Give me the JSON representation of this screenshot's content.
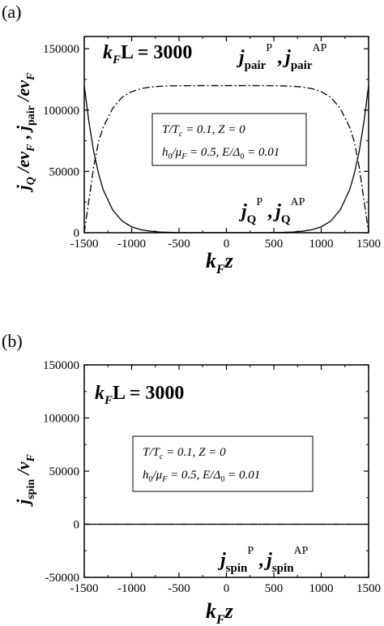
{
  "chart_data": [
    {
      "panel_label": "(a)",
      "type": "line",
      "xlabel": {
        "main": "k",
        "sub": "F",
        "tail": "z"
      },
      "ylabel_parts": [
        {
          "t": "j",
          "cls": "bi"
        },
        {
          "t": "Q",
          "cls": "bi",
          "sub": true
        },
        {
          "t": " /ev",
          "cls": "bi"
        },
        {
          "t": "F",
          "cls": "bi",
          "sub": true
        },
        {
          "t": " , ",
          "cls": "b"
        },
        {
          "t": "j",
          "cls": "bi"
        },
        {
          "t": "pair",
          "cls": "b",
          "sub": true
        },
        {
          "t": " /ev",
          "cls": "bi"
        },
        {
          "t": "F",
          "cls": "bi",
          "sub": true
        }
      ],
      "xlim": [
        -1500,
        1500
      ],
      "ylim": [
        0,
        160000
      ],
      "xticks": [
        -1500,
        -1000,
        -500,
        0,
        500,
        1000,
        1500
      ],
      "yticks": [
        0,
        50000,
        100000,
        150000
      ],
      "xtick_labels": [
        "-1500",
        "-1000",
        "-500",
        "0",
        "500",
        "1000",
        "1500"
      ],
      "ytick_labels": [
        "0",
        "50000",
        "100000",
        "150000"
      ],
      "kfl_text": {
        "k": "k",
        "sub": "F",
        "rest": "L = 3000"
      },
      "params_box": {
        "line1": [
          "T/T",
          "c",
          " = 0.1,  Z = 0"
        ],
        "line2": [
          "h",
          "0",
          "/μ",
          "F",
          " = 0.5,  E/Δ",
          "0",
          " = 0.01"
        ]
      },
      "annotations": [
        {
          "base": "j",
          "sub": "pair",
          "sup": "P",
          "mid": " ,",
          "base2": "j",
          "sub2": "pair",
          "sup2": "AP"
        },
        {
          "base": "j",
          "sub": "Q",
          "sup": "P",
          "mid": " ,",
          "base2": "j",
          "sub2": "Q",
          "sup2": "AP"
        }
      ],
      "series": [
        {
          "style": "solid",
          "x": [
            -1500,
            -1450,
            -1400,
            -1350,
            -1300,
            -1200,
            -1100,
            -1000,
            -900,
            -800,
            -700,
            -600,
            -500,
            -400,
            -300,
            -200,
            -100,
            0,
            100,
            200,
            300,
            400,
            500,
            600,
            700,
            800,
            900,
            1000,
            1100,
            1200,
            1300,
            1350,
            1400,
            1450,
            1500
          ],
          "values": [
            120000,
            90000,
            66000,
            48500,
            35000,
            18500,
            9500,
            4800,
            2400,
            1200,
            600,
            300,
            150,
            80,
            50,
            40,
            40,
            40,
            40,
            40,
            50,
            80,
            150,
            300,
            600,
            1200,
            2400,
            4800,
            9500,
            18500,
            35000,
            48500,
            66000,
            90000,
            120000
          ]
        },
        {
          "style": "dashdot",
          "x": [
            -1500,
            -1450,
            -1400,
            -1350,
            -1300,
            -1200,
            -1100,
            -1000,
            -900,
            -800,
            -700,
            -600,
            -500,
            -400,
            -300,
            -200,
            -100,
            0,
            100,
            200,
            300,
            400,
            500,
            600,
            700,
            800,
            900,
            1000,
            1100,
            1200,
            1300,
            1350,
            1400,
            1450,
            1500
          ],
          "values": [
            0,
            27000,
            54000,
            74000,
            86000,
            101500,
            110500,
            115000,
            117500,
            118800,
            119400,
            119700,
            119850,
            119920,
            119950,
            119960,
            119960,
            119960,
            119960,
            119960,
            119950,
            119920,
            119850,
            119700,
            119400,
            118800,
            117500,
            115000,
            110500,
            101500,
            86000,
            74000,
            54000,
            27000,
            0
          ]
        }
      ]
    },
    {
      "panel_label": "(b)",
      "type": "line",
      "xlabel": {
        "main": "k",
        "sub": "F",
        "tail": "z"
      },
      "ylabel_parts": [
        {
          "t": "j",
          "cls": "bi"
        },
        {
          "t": "spin",
          "cls": "b",
          "sub": true
        },
        {
          "t": " /v",
          "cls": "bi"
        },
        {
          "t": "F",
          "cls": "bi",
          "sub": true
        }
      ],
      "xlim": [
        -1500,
        1500
      ],
      "ylim": [
        -50000,
        150000
      ],
      "xticks": [
        -1500,
        -1000,
        -500,
        0,
        500,
        1000,
        1500
      ],
      "yticks": [
        -50000,
        0,
        50000,
        100000,
        150000
      ],
      "xtick_labels": [
        "-1500",
        "-1000",
        "-500",
        "0",
        "500",
        "1000",
        "1500"
      ],
      "ytick_labels": [
        "-50000",
        "0",
        "50000",
        "100000",
        "150000"
      ],
      "kfl_text": {
        "k": "k",
        "sub": "F",
        "rest": "L = 3000"
      },
      "params_box": {
        "line1": [
          "T/T",
          "c",
          " = 0.1,  Z = 0"
        ],
        "line2": [
          "h",
          "0",
          "/μ",
          "F",
          " = 0.5,  E/Δ",
          "0",
          " = 0.01"
        ]
      },
      "annotations": [
        {
          "base": "j",
          "sub": "spin",
          "sup": "P",
          "mid": " ,",
          "base2": "j",
          "sub2": "spin",
          "sup2": "AP"
        }
      ],
      "series": [
        {
          "style": "solid",
          "x": [
            -1500,
            1500
          ],
          "values": [
            0,
            0
          ]
        },
        {
          "style": "dashdot",
          "x": [
            -1500,
            1500
          ],
          "values": [
            0,
            0
          ]
        }
      ]
    }
  ]
}
